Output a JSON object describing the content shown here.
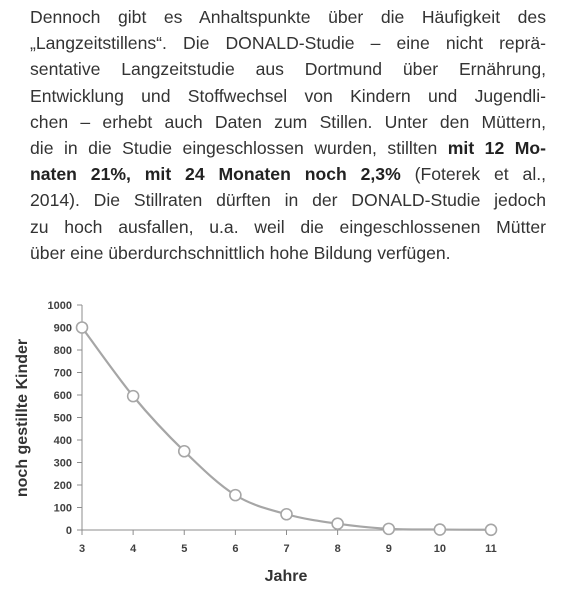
{
  "paragraph": {
    "lines": [
      [
        {
          "text": "Dennoch gibt es Anhaltspunkte über die Häufigkeit des",
          "bold": false
        }
      ],
      [
        {
          "text": "„Langzeitstillens“. Die DONALD-Studie – eine nicht reprä-",
          "bold": false
        }
      ],
      [
        {
          "text": "sentative Langzeitstudie aus Dortmund über Ernährung,",
          "bold": false
        }
      ],
      [
        {
          "text": "Entwicklung und Stoffwechsel von Kindern und Jugendli-",
          "bold": false
        }
      ],
      [
        {
          "text": "chen – erhebt auch Daten zum Stillen. Unter den Müttern,",
          "bold": false
        }
      ],
      [
        {
          "text": "die in die Studie eingeschlossen wurden, stillten ",
          "bold": false
        },
        {
          "text": "mit 12 Mo-",
          "bold": true
        }
      ],
      [
        {
          "text": "naten 21%, mit 24 Monaten noch 2,3%",
          "bold": true
        },
        {
          "text": " (Foterek et al.,",
          "bold": false
        }
      ],
      [
        {
          "text": "2014). Die Stillraten dürften in der DONALD-Studie jedoch",
          "bold": false
        }
      ],
      [
        {
          "text": "zu hoch ausfallen, u.a. weil die eingeschlossenen Mütter",
          "bold": false
        }
      ],
      [
        {
          "text": "über eine überdurchschnittlich hohe Bildung verfügen.",
          "bold": false
        }
      ]
    ]
  },
  "chart_data": {
    "type": "line",
    "x": [
      3,
      4,
      5,
      6,
      7,
      8,
      9,
      10,
      11
    ],
    "y": [
      900,
      595,
      350,
      155,
      70,
      28,
      5,
      2,
      1
    ],
    "xlabel": "Jahre",
    "ylabel": "noch gestillte Kinder",
    "xlim": [
      3,
      11
    ],
    "ylim": [
      0,
      1000
    ],
    "yticks": [
      0,
      100,
      200,
      300,
      400,
      500,
      600,
      700,
      800,
      900,
      1000
    ],
    "xticks": [
      3,
      4,
      5,
      6,
      7,
      8,
      9,
      10,
      11
    ],
    "grid": false,
    "smooth": true,
    "line_color": "#a6a6a6",
    "marker": "open-circle"
  }
}
